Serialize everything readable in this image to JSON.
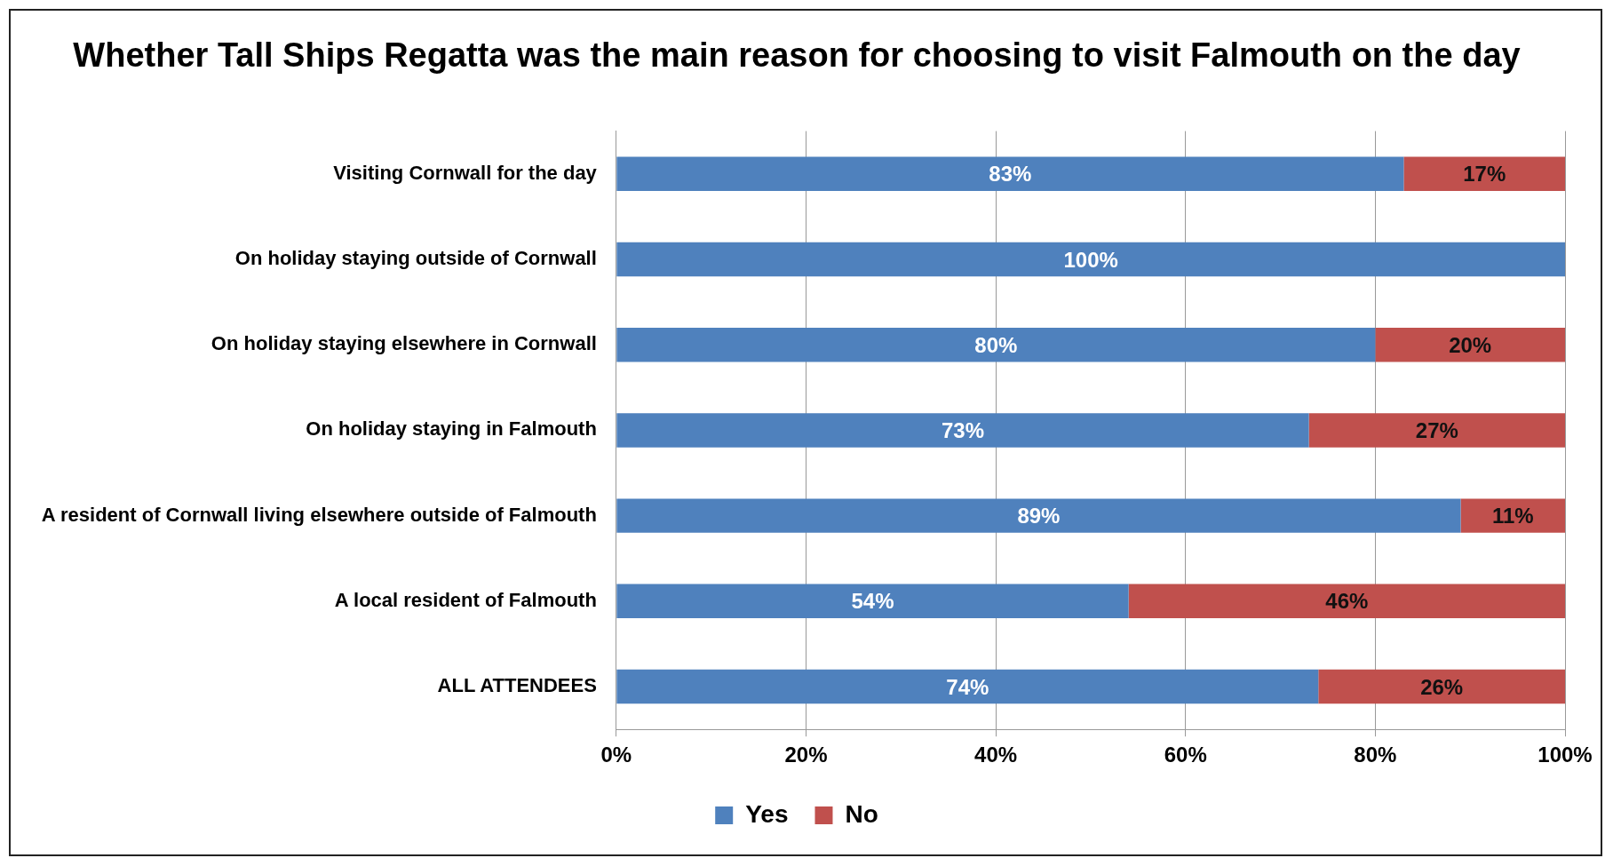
{
  "chart_data": {
    "type": "bar",
    "orientation": "horizontal",
    "stacked": true,
    "title": "Whether Tall Ships Regatta was the main reason for choosing to visit Falmouth on the day",
    "categories": [
      "Visiting Cornwall for the day",
      "On holiday staying outside of Cornwall",
      "On holiday staying elsewhere in Cornwall",
      "On holiday staying in Falmouth",
      "A resident of Cornwall living elsewhere outside of Falmouth",
      "A local resident of Falmouth",
      "ALL ATTENDEES"
    ],
    "series": [
      {
        "name": "Yes",
        "color": "#4f81bd",
        "values": [
          83,
          100,
          80,
          73,
          89,
          54,
          74
        ],
        "value_labels": [
          "83%",
          "100%",
          "80%",
          "73%",
          "89%",
          "54%",
          "74%"
        ]
      },
      {
        "name": "No",
        "color": "#c0504d",
        "values": [
          17,
          0,
          20,
          27,
          11,
          46,
          26
        ],
        "value_labels": [
          "17%",
          null,
          "20%",
          "27%",
          "11%",
          "46%",
          "26%"
        ]
      }
    ],
    "xlim": [
      0,
      100
    ],
    "xticks": [
      {
        "value": 0,
        "label": "0%"
      },
      {
        "value": 20,
        "label": "20%"
      },
      {
        "value": 40,
        "label": "40%"
      },
      {
        "value": 60,
        "label": "60%"
      },
      {
        "value": 80,
        "label": "80%"
      },
      {
        "value": 100,
        "label": "100%"
      }
    ],
    "grid": "x",
    "legend": "bottom"
  }
}
